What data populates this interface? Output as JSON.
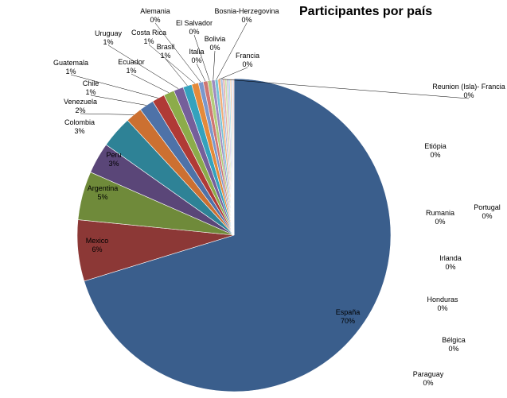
{
  "chart_data": {
    "type": "pie",
    "title": "Participantes por país",
    "slices": [
      {
        "label": "España",
        "pct": "70%",
        "value": 70.0,
        "color": "#3a5e8c"
      },
      {
        "label": "Mexico",
        "pct": "6%",
        "value": 6.3,
        "color": "#8c3836"
      },
      {
        "label": "Argentina",
        "pct": "5%",
        "value": 5.0,
        "color": "#6f8a3a"
      },
      {
        "label": "Peru",
        "pct": "3%",
        "value": 3.2,
        "color": "#5a4678"
      },
      {
        "label": "Colombia",
        "pct": "3%",
        "value": 3.3,
        "color": "#2e8296"
      },
      {
        "label": "Venezuela",
        "pct": "2%",
        "value": 1.7,
        "color": "#cc7031"
      },
      {
        "label": "Chile",
        "pct": "1%",
        "value": 1.5,
        "color": "#4e72a8"
      },
      {
        "label": "Guatemala",
        "pct": "1%",
        "value": 1.3,
        "color": "#b03a36"
      },
      {
        "label": "Ecuador",
        "pct": "1%",
        "value": 1.1,
        "color": "#8cac4a"
      },
      {
        "label": "Uruguay",
        "pct": "1%",
        "value": 1.0,
        "color": "#755f9a"
      },
      {
        "label": "Brasil",
        "pct": "1%",
        "value": 0.9,
        "color": "#34a2bd"
      },
      {
        "label": "Costa Rica",
        "pct": "1%",
        "value": 0.7,
        "color": "#e48a3a"
      },
      {
        "label": "Alemania",
        "pct": "0%",
        "value": 0.5,
        "color": "#7a98cc"
      },
      {
        "label": "Italia",
        "pct": "0%",
        "value": 0.45,
        "color": "#d07672"
      },
      {
        "label": "El Salvador",
        "pct": "0%",
        "value": 0.4,
        "color": "#b3cc7c"
      },
      {
        "label": "Bolivia",
        "pct": "0%",
        "value": 0.35,
        "color": "#9f8cc0"
      },
      {
        "label": "Bosnia-Herzegovina",
        "pct": "0%",
        "value": 0.3,
        "color": "#76c3d6"
      },
      {
        "label": "Francia",
        "pct": "0%",
        "value": 0.28,
        "color": "#f2ad76"
      },
      {
        "label": "Reunion (Isla)- Francia",
        "pct": "0%",
        "value": 0.22,
        "color": "#a9bde0"
      },
      {
        "label": "Etiópia",
        "pct": "0%",
        "value": 0.2,
        "color": "#e3aaa8"
      },
      {
        "label": "Portugal",
        "pct": "0%",
        "value": 0.2,
        "color": "#cfe0a8"
      },
      {
        "label": "Rumania",
        "pct": "0%",
        "value": 0.18,
        "color": "#c4b7d9"
      },
      {
        "label": "Irlanda",
        "pct": "0%",
        "value": 0.16,
        "color": "#a8dbe8"
      },
      {
        "label": "Honduras",
        "pct": "0%",
        "value": 0.15,
        "color": "#f6cba6"
      },
      {
        "label": "Bélgica",
        "pct": "0%",
        "value": 0.13,
        "color": "#c9d4ec"
      },
      {
        "label": "Paraguay",
        "pct": "0%",
        "value": 0.12,
        "color": "#edc9c8"
      }
    ]
  }
}
